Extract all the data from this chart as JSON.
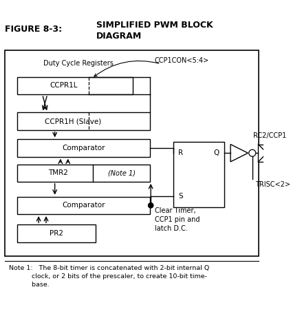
{
  "title_left": "FIGURE 8-3:",
  "title_right": "SIMPLIFIED PWM BLOCK\nDIAGRAM",
  "bg_color": "#ffffff",
  "note_text": "Note 1:   The 8-bit timer is concatenated with 2-bit internal Q\n           clock, or 2 bits of the prescaler, to create 10-bit time-\n           base.",
  "duty_cycle_label": "Duty Cycle Registers",
  "ccp1con_label": "CCP1CON<5:4>",
  "clear_timer_label": "Clear Timer,\nCCP1 pin and\nlatch D.C.",
  "rc2_label": "RC2/CCP1",
  "trisc_label": "TRISC<2>",
  "ccpr1l_label": "CCPR1L",
  "ccpr1h_label": "CCPR1H (Slave)",
  "comp_top_label": "Comparator",
  "tmr2_label": "TMR2",
  "note1_label": "(Note 1)",
  "comp_bot_label": "Comparator",
  "pr2_label": "PR2",
  "sr_r_label": "R",
  "sr_q_label": "Q",
  "sr_s_label": "S"
}
